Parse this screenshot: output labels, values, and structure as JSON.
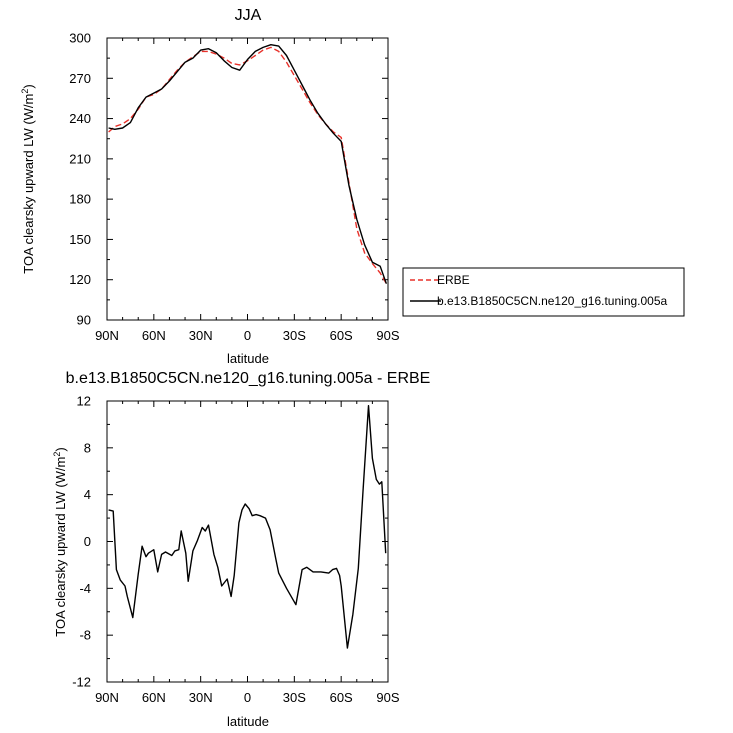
{
  "chart_data": [
    {
      "type": "line",
      "title": "JJA",
      "xlabel": "latitude",
      "ylabel": "TOA clearsky upward LW (W/m²)",
      "xlim": [
        -90,
        90
      ],
      "ylim": [
        90,
        300
      ],
      "x_ticks": [
        -90,
        -60,
        -30,
        0,
        30,
        60,
        90
      ],
      "x_tick_labels": [
        "90N",
        "60N",
        "30N",
        "0",
        "30S",
        "60S",
        "90S"
      ],
      "y_ticks": [
        90,
        120,
        150,
        180,
        210,
        240,
        270,
        300
      ],
      "y_tick_labels": [
        "90",
        "120",
        "150",
        "180",
        "210",
        "240",
        "270",
        "300"
      ],
      "legend_position": "right",
      "series": [
        {
          "name": "ERBE",
          "color": "#e8312a",
          "dash": "dashed",
          "x": [
            -89,
            -85,
            -80,
            -75,
            -70,
            -65,
            -60,
            -55,
            -50,
            -45,
            -40,
            -35,
            -30,
            -25,
            -20,
            -15,
            -10,
            -5,
            0,
            5,
            10,
            15,
            20,
            25,
            30,
            35,
            40,
            45,
            50,
            55,
            60,
            65,
            70,
            75,
            80,
            85,
            89
          ],
          "y": [
            230,
            234,
            236,
            240,
            247,
            256,
            258,
            262,
            269,
            276,
            282,
            286,
            290,
            290,
            288,
            285,
            281,
            280,
            283,
            287,
            291,
            293,
            290,
            282,
            272,
            262,
            252,
            243,
            236,
            230,
            226,
            192,
            158,
            140,
            132,
            125,
            117
          ]
        },
        {
          "name": "b.e13.B1850C5CN.ne120_g16.tuning.005a",
          "color": "#000000",
          "dash": "solid",
          "x": [
            -89,
            -85,
            -80,
            -75,
            -70,
            -65,
            -60,
            -55,
            -50,
            -45,
            -40,
            -35,
            -30,
            -25,
            -20,
            -15,
            -10,
            -5,
            0,
            5,
            10,
            15,
            20,
            25,
            30,
            35,
            40,
            45,
            50,
            55,
            60,
            65,
            70,
            75,
            80,
            85,
            89
          ],
          "y": [
            233,
            232,
            233,
            237,
            248,
            256,
            259,
            262,
            268,
            275,
            282,
            285,
            291,
            292,
            289,
            283,
            278,
            276,
            284,
            290,
            293,
            295,
            294,
            287,
            276,
            265,
            254,
            244,
            236,
            229,
            223,
            190,
            165,
            146,
            133,
            130,
            117
          ]
        }
      ]
    },
    {
      "type": "line",
      "title": "b.e13.B1850C5CN.ne120_g16.tuning.005a - ERBE",
      "xlabel": "latitude",
      "ylabel": "TOA clearsky upward LW (W/m²)",
      "xlim": [
        -90,
        90
      ],
      "ylim": [
        -12,
        12
      ],
      "x_ticks": [
        -90,
        -60,
        -30,
        0,
        30,
        60,
        90
      ],
      "x_tick_labels": [
        "90N",
        "60N",
        "30N",
        "0",
        "30S",
        "60S",
        "90S"
      ],
      "y_ticks": [
        -12,
        -8,
        -4,
        0,
        4,
        8,
        12
      ],
      "y_tick_labels": [
        "-12",
        "-8",
        "-4",
        "0",
        "4",
        "8",
        "12"
      ],
      "series": [
        {
          "color": "#000000",
          "dash": "solid",
          "x": [
            -89,
            -86,
            -84,
            -81.5,
            -78.5,
            -77,
            -73.5,
            -70,
            -67.5,
            -65,
            -63.5,
            -60,
            -57.5,
            -55,
            -52.5,
            -48.5,
            -46.5,
            -44,
            -42.5,
            -39.5,
            -38,
            -35,
            -32,
            -29,
            -27,
            -25,
            -21.5,
            -19,
            -16.5,
            -13,
            -10.5,
            -8.5,
            -5.5,
            -3.5,
            -1.5,
            1,
            3,
            5.5,
            8,
            11.5,
            14.5,
            18,
            20,
            25,
            31,
            35,
            38,
            42,
            47,
            52,
            54.5,
            57,
            59,
            60,
            64,
            67.5,
            71,
            74,
            77.5,
            80,
            82.5,
            84.5,
            86,
            88.5
          ],
          "y": [
            2.7,
            2.6,
            -2.4,
            -3.3,
            -3.8,
            -4.7,
            -6.5,
            -2.8,
            -0.4,
            -1.3,
            -1.0,
            -0.7,
            -2.6,
            -1.1,
            -0.9,
            -1.2,
            -0.8,
            -0.7,
            0.9,
            -1.0,
            -3.4,
            -0.8,
            0.1,
            1.2,
            0.9,
            1.4,
            -1.1,
            -2.2,
            -3.8,
            -3.2,
            -4.7,
            -2.9,
            1.6,
            2.7,
            3.2,
            2.8,
            2.2,
            2.3,
            2.2,
            2.0,
            1.0,
            -1.4,
            -2.7,
            -4.0,
            -5.4,
            -2.4,
            -2.2,
            -2.6,
            -2.6,
            -2.7,
            -2.4,
            -2.3,
            -2.9,
            -3.8,
            -9.1,
            -6.2,
            -2.3,
            4.3,
            11.6,
            7.1,
            5.3,
            4.9,
            5.1,
            -1.0
          ]
        }
      ]
    }
  ],
  "legend": {
    "items": [
      {
        "label": "ERBE"
      },
      {
        "label": "b.e13.B1850C5CN.ne120_g16.tuning.005a"
      }
    ]
  }
}
